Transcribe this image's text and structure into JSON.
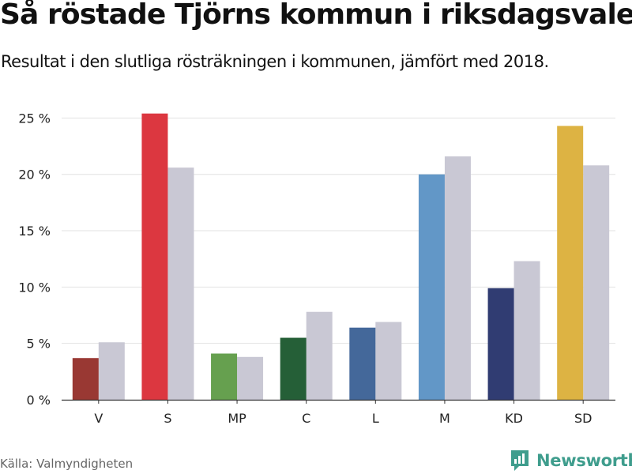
{
  "header": {
    "title": "Så röstade Tjörns kommun i riksdagsvalet",
    "subtitle": "Resultat i den slutliga rösträkningen i kommunen, jämfört med 2018."
  },
  "footer": {
    "source": "Källa: Valmyndigheten",
    "brand": "Newsworthy",
    "brand_icon": "newsworthy-logo-icon",
    "brand_color": "#3f9d8d"
  },
  "chart_data": {
    "type": "bar",
    "title": "Så röstade Tjörns kommun i riksdagsvalet",
    "subtitle": "Resultat i den slutliga rösträkningen i kommunen, jämfört med 2018.",
    "categories": [
      "V",
      "S",
      "MP",
      "C",
      "L",
      "M",
      "KD",
      "SD"
    ],
    "series": [
      {
        "values": [
          3.7,
          25.4,
          4.1,
          5.5,
          6.4,
          20.0,
          9.9,
          24.3
        ],
        "colors": [
          "#993833",
          "#dc3740",
          "#66a04f",
          "#255f37",
          "#44689a",
          "#6297c7",
          "#303c72",
          "#ddb343"
        ]
      },
      {
        "values": [
          5.1,
          20.6,
          3.8,
          7.8,
          6.9,
          21.6,
          12.3,
          20.8
        ],
        "color": "#c9c8d4"
      }
    ],
    "yticks": [
      "0 %",
      "5 %",
      "10 %",
      "15 %",
      "20 %",
      "25 %"
    ],
    "ylim": [
      0,
      26.5
    ],
    "grid": true,
    "xlabel": "",
    "ylabel": ""
  }
}
